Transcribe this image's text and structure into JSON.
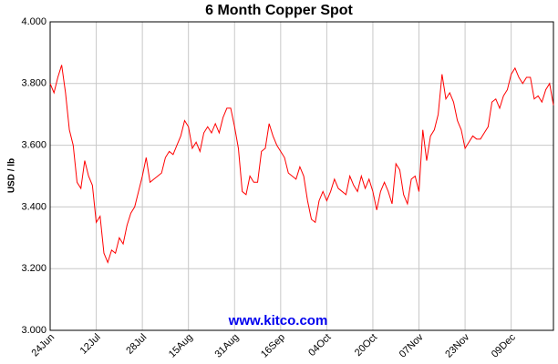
{
  "chart_data": {
    "type": "line",
    "title": "6 Month Copper Spot",
    "y_label": "USD / lb",
    "watermark": "www.kitco.com",
    "categories": [
      "24Jun",
      null,
      null,
      null,
      null,
      null,
      null,
      null,
      null,
      null,
      null,
      null,
      "12Jul",
      null,
      null,
      null,
      null,
      null,
      null,
      null,
      null,
      null,
      null,
      null,
      "28Jul",
      null,
      null,
      null,
      null,
      null,
      null,
      null,
      null,
      null,
      null,
      null,
      "15Aug",
      null,
      null,
      null,
      null,
      null,
      null,
      null,
      null,
      null,
      null,
      null,
      "31Aug",
      null,
      null,
      null,
      null,
      null,
      null,
      null,
      null,
      null,
      null,
      null,
      "16Sep",
      null,
      null,
      null,
      null,
      null,
      null,
      null,
      null,
      null,
      null,
      null,
      "04Oct",
      null,
      null,
      null,
      null,
      null,
      null,
      null,
      null,
      null,
      null,
      null,
      "20Oct",
      null,
      null,
      null,
      null,
      null,
      null,
      null,
      null,
      null,
      null,
      null,
      "07Nov",
      null,
      null,
      null,
      null,
      null,
      null,
      null,
      null,
      null,
      null,
      null,
      "23Nov",
      null,
      null,
      null,
      null,
      null,
      null,
      null,
      null,
      null,
      null,
      null,
      "09Dec",
      null,
      null,
      null,
      null,
      null,
      null,
      null,
      null,
      null,
      null,
      null
    ],
    "series": [
      {
        "color": "#ff0000",
        "values": [
          3.8,
          3.77,
          3.82,
          3.86,
          3.77,
          3.65,
          3.6,
          3.48,
          3.46,
          3.55,
          3.5,
          3.47,
          3.35,
          3.37,
          3.25,
          3.22,
          3.26,
          3.25,
          3.3,
          3.28,
          3.34,
          3.38,
          3.4,
          3.45,
          3.5,
          3.56,
          3.48,
          3.49,
          3.5,
          3.51,
          3.56,
          3.58,
          3.57,
          3.6,
          3.63,
          3.68,
          3.66,
          3.59,
          3.61,
          3.58,
          3.64,
          3.66,
          3.64,
          3.67,
          3.64,
          3.69,
          3.72,
          3.72,
          3.66,
          3.59,
          3.45,
          3.44,
          3.5,
          3.48,
          3.48,
          3.58,
          3.59,
          3.67,
          3.63,
          3.6,
          3.58,
          3.56,
          3.51,
          3.5,
          3.49,
          3.53,
          3.5,
          3.42,
          3.36,
          3.35,
          3.42,
          3.45,
          3.42,
          3.45,
          3.49,
          3.46,
          3.45,
          3.44,
          3.5,
          3.47,
          3.45,
          3.5,
          3.46,
          3.49,
          3.45,
          3.39,
          3.45,
          3.48,
          3.45,
          3.41,
          3.54,
          3.52,
          3.44,
          3.41,
          3.49,
          3.5,
          3.45,
          3.65,
          3.55,
          3.63,
          3.65,
          3.7,
          3.83,
          3.75,
          3.77,
          3.74,
          3.68,
          3.65,
          3.59,
          3.61,
          3.63,
          3.62,
          3.62,
          3.64,
          3.66,
          3.74,
          3.75,
          3.72,
          3.76,
          3.78,
          3.83,
          3.85,
          3.82,
          3.8,
          3.82,
          3.82,
          3.75,
          3.76,
          3.74,
          3.78,
          3.8,
          3.73
        ]
      }
    ],
    "ylim": [
      3,
      4
    ],
    "yticks": [
      {
        "value": 3,
        "label": "3.000"
      },
      {
        "value": 3.2,
        "label": "3.200"
      },
      {
        "value": 3.4,
        "label": "3.400"
      },
      {
        "value": 3.6,
        "label": "3.600"
      },
      {
        "value": 3.8,
        "label": "3.800"
      },
      {
        "value": 4,
        "label": "4.000"
      }
    ],
    "grid": true
  }
}
